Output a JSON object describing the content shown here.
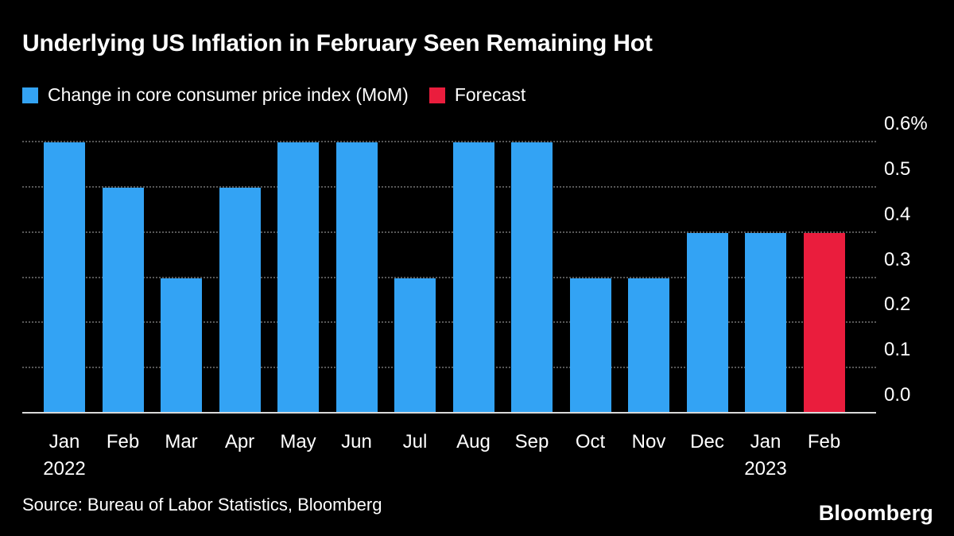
{
  "title": "Underlying US Inflation in February Seen Remaining Hot",
  "legend": [
    {
      "label": "Change in core consumer price index (MoM)",
      "color": "#33a3f4"
    },
    {
      "label": "Forecast",
      "color": "#ea1d3d"
    }
  ],
  "source": "Source: Bureau of Labor Statistics, Bloomberg",
  "brand": "Bloomberg",
  "chart_data": {
    "type": "bar",
    "title": "Underlying US Inflation in February Seen Remaining Hot",
    "series_label": "Change in core consumer price index (MoM)",
    "forecast_label": "Forecast",
    "categories": [
      "Jan",
      "Feb",
      "Mar",
      "Apr",
      "May",
      "Jun",
      "Jul",
      "Aug",
      "Sep",
      "Oct",
      "Nov",
      "Dec",
      "Jan",
      "Feb"
    ],
    "year_row": {
      "0": "2022",
      "12": "2023"
    },
    "values": [
      0.6,
      0.5,
      0.3,
      0.5,
      0.6,
      0.6,
      0.3,
      0.6,
      0.6,
      0.3,
      0.3,
      0.4,
      0.4,
      0.4
    ],
    "forecast_index": 13,
    "bar_color": "#33a3f4",
    "forecast_color": "#ea1d3d",
    "ylim": [
      0,
      0.6
    ],
    "yticks": [
      0,
      0.1,
      0.2,
      0.3,
      0.4,
      0.5,
      0.6
    ],
    "ytick_labels": [
      "0.0",
      "0.1",
      "0.2",
      "0.3",
      "0.4",
      "0.5",
      "0.6%"
    ],
    "grid": "dotted-horizontal",
    "legend_position": "top-left",
    "y_axis_side": "right"
  }
}
